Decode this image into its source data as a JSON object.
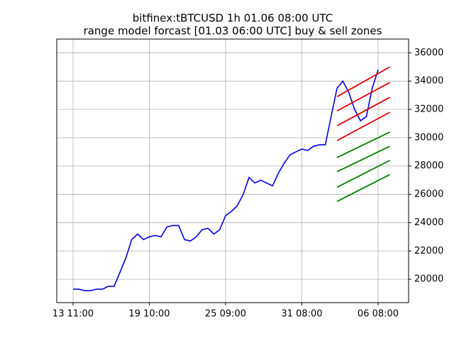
{
  "chart_data": {
    "type": "line",
    "title": "bitfinex:tBTCUSD 1h 01.06 08:00 UTC",
    "subtitle": "range model forcast [01.03 06:00 UTC] buy & sell zones",
    "x": [
      "13 11:00",
      "13 22:00",
      "14 09:00",
      "14 20:00",
      "15 07:00",
      "15 18:00",
      "16 05:00",
      "16 16:00",
      "17 03:00",
      "17 14:00",
      "18 01:00",
      "18 12:00",
      "18 23:00",
      "19 10:00",
      "19 21:00",
      "20 08:00",
      "20 19:00",
      "21 06:00",
      "21 17:00",
      "22 04:00",
      "22 15:00",
      "23 02:00",
      "23 13:00",
      "24 00:00",
      "24 11:00",
      "24 22:00",
      "25 09:00",
      "25 20:00",
      "26 07:00",
      "26 18:00",
      "27 05:00",
      "27 16:00",
      "28 03:00",
      "28 14:00",
      "29 01:00",
      "29 12:00",
      "29 23:00",
      "30 10:00",
      "30 21:00",
      "31 08:00",
      "31 19:00",
      "01 06:00",
      "01 17:00",
      "02 04:00",
      "02 15:00",
      "03 02:00",
      "03 13:00",
      "04 00:00",
      "04 11:00",
      "04 22:00",
      "05 09:00",
      "05 20:00",
      "06 08:00",
      "06 19:00",
      "07 06:00"
    ],
    "series": [
      {
        "color": "#0000e0",
        "values": [
          19300,
          19300,
          19200,
          19200,
          19300,
          19300,
          19500,
          19500,
          20500,
          21500,
          22800,
          23200,
          22800,
          23000,
          23100,
          23000,
          23700,
          23800,
          23800,
          22800,
          22700,
          23000,
          23500,
          23600,
          23200,
          23500,
          24500,
          24800,
          25200,
          26000,
          27200,
          26800,
          27000,
          26800,
          26600,
          27500,
          28200,
          28800,
          29000,
          29200,
          29100,
          29400,
          29500,
          29500,
          31500,
          33500,
          34000,
          33200,
          32000,
          31200,
          31500,
          33500,
          34800,
          null,
          null
        ]
      }
    ],
    "zones": [
      {
        "color": "#e00000",
        "x": [
          "03 02:00",
          "07 06:00"
        ],
        "values": [
          32900,
          35000
        ]
      },
      {
        "color": "#e00000",
        "x": [
          "03 02:00",
          "07 06:00"
        ],
        "values": [
          31900,
          33900
        ]
      },
      {
        "color": "#e00000",
        "x": [
          "03 02:00",
          "07 06:00"
        ],
        "values": [
          30850,
          32850
        ]
      },
      {
        "color": "#e00000",
        "x": [
          "03 02:00",
          "07 06:00"
        ],
        "values": [
          29800,
          31800
        ]
      },
      {
        "color": "#008000",
        "x": [
          "03 02:00",
          "07 06:00"
        ],
        "values": [
          28600,
          30400
        ]
      },
      {
        "color": "#008000",
        "x": [
          "03 02:00",
          "07 06:00"
        ],
        "values": [
          27600,
          29400
        ]
      },
      {
        "color": "#008000",
        "x": [
          "03 02:00",
          "07 06:00"
        ],
        "values": [
          26500,
          28400
        ]
      },
      {
        "color": "#008000",
        "x": [
          "03 02:00",
          "07 06:00"
        ],
        "values": [
          25500,
          27400
        ]
      }
    ],
    "xticks": [
      "13 11:00",
      "19 10:00",
      "25 09:00",
      "31 08:00",
      "06 08:00"
    ],
    "ylim": [
      18350,
      36970
    ],
    "yticks": [
      20000,
      22000,
      24000,
      26000,
      28000,
      30000,
      32000,
      34000,
      36000
    ],
    "grid": true,
    "y_axis_side": "right"
  }
}
